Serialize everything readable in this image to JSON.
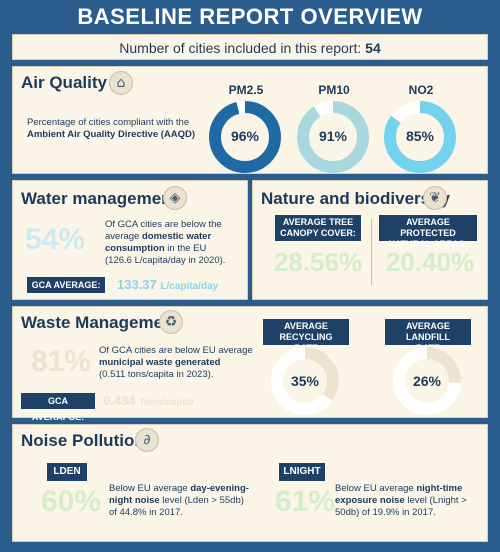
{
  "title": "BASELINE REPORT OVERVIEW",
  "cities_count": {
    "prefix": "Number of cities included in this report:",
    "value": "54"
  },
  "air_quality": {
    "title": "Air Quality",
    "icon": "factory-icon",
    "description_line1": "Percentage of cities compliant with the",
    "description_line2": "Ambient Air Quality Directive (AAQD)",
    "pollutants": [
      {
        "name": "PM2.5",
        "value": "96%",
        "fraction": 0.96,
        "color": "#1f6aa5"
      },
      {
        "name": "PM10",
        "value": "91%",
        "fraction": 0.91,
        "color": "#a8d8de"
      },
      {
        "name": "NO2",
        "value": "85%",
        "fraction": 0.85,
        "color": "#74d2ee"
      }
    ]
  },
  "water": {
    "title": "Water management",
    "icon": "water-drop-icon",
    "percent": "54%",
    "text_line1": "Of GCA cities are below the",
    "text_line2_pre": "average ",
    "text_line2_bold": "domestic water",
    "text_line3_bold": "consumption",
    "text_line3_post": " in the EU",
    "text_line4": "(126.6 L/capita/day in 2020).",
    "avg_label": "GCA AVERAGE:",
    "avg_value": "133.37",
    "avg_unit": "L/capita/day"
  },
  "nature": {
    "title": "Nature and biodiversity",
    "icon": "leaf-icon",
    "tree_label_line1": "AVERAGE TREE",
    "tree_label_line2": "CANOPY COVER:",
    "tree_value": "28.56%",
    "protected_label_line1": "AVERAGE PROTECTED",
    "protected_label_line2": "NATURAL AREAS:",
    "protected_value": "20.40%"
  },
  "waste": {
    "title": "Waste Management",
    "icon": "recycle-icon",
    "percent": "81%",
    "text_line1": "Of GCA cities are below EU average",
    "text_line2_bold": "municipal waste generated",
    "text_line3": "(0.511 tons/capita in 2023).",
    "avg_label": "GCA AVERAFGE:",
    "avg_value": "0.434",
    "avg_unit": "Tons/capita",
    "recycling_label_line1": "AVERAGE RECYCLING",
    "recycling_label_line2": "RATE",
    "recycling_value": "35%",
    "recycling_fraction": 0.35,
    "landfill_label_line1": "AVERAGE LANDFILL",
    "landfill_label_line2": "RATE",
    "landfill_value": "26%",
    "landfill_fraction": 0.26
  },
  "noise": {
    "title": "Noise Pollution",
    "icon": "ear-icon",
    "lden_tag": "LDEN",
    "lden_percent": "60%",
    "lden_line1_pre": "Below EU average ",
    "lden_line1_bold": "day-evening-",
    "lden_line2_bold": "night noise",
    "lden_line2_post": " level (Lden > 55db)",
    "lden_line3": "of 44.8% in 2017.",
    "lnight_tag": "LNIGHT",
    "lnight_percent": "61%",
    "lnight_line1_pre": "Below EU average ",
    "lnight_line1_bold": "night-time",
    "lnight_line2_bold": "exposure noise",
    "lnight_line2_post": " level (Lnight >",
    "lnight_line3": "50db) of 19.9% in 2017."
  },
  "colors": {
    "background": "#2b5c8e",
    "panel": "#fbf5e7",
    "dark_blue": "#1c3a5c",
    "light_cyan": "#8fd2e8",
    "light_green": "#d5edc8",
    "light_beige": "#eee3cf"
  }
}
